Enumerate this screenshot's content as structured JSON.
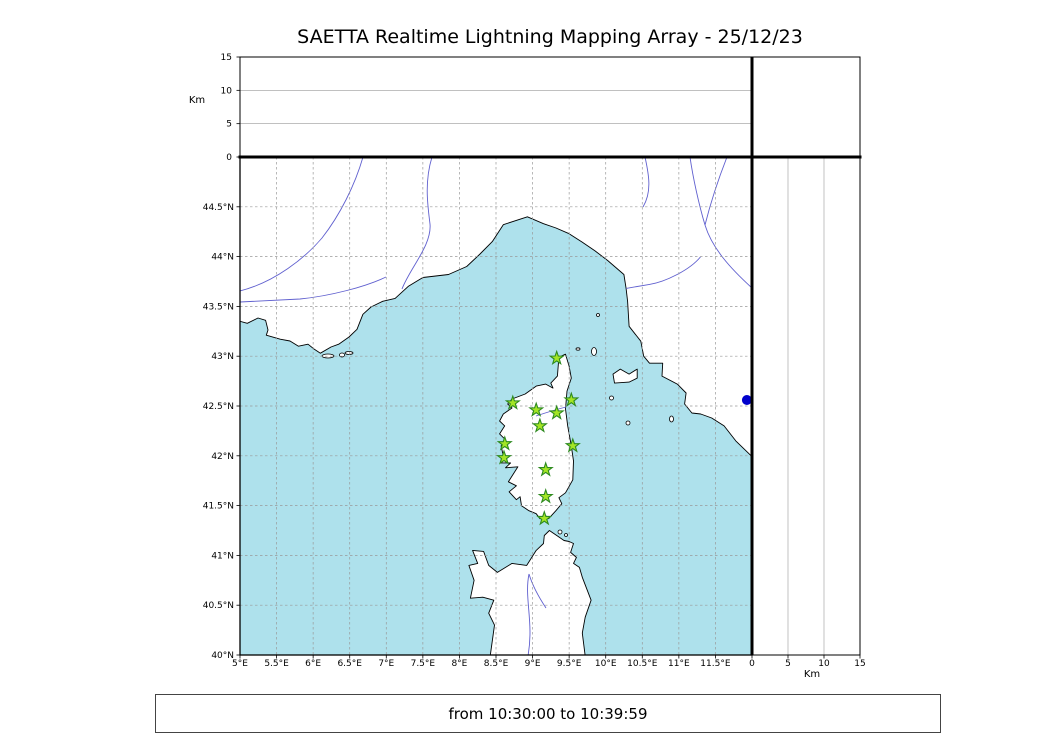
{
  "title": "SAETTA Realtime Lightning Mapping Array - 25/12/23",
  "footer": {
    "time_range": "from 10:30:00 to 10:39:59"
  },
  "colors": {
    "sea": "#aee1ec",
    "land": "#ffffff",
    "coastline": "#000000",
    "river": "#6060cf",
    "grid": "#999999",
    "station_fill": "#a4e525",
    "station_edge": "#2d8a1f",
    "offshore_marker": "#0000cc"
  },
  "chart_data": {
    "type": "scatter",
    "title": "SAETTA Realtime Lightning Mapping Array - 25/12/23",
    "map": {
      "lon_range": [
        5,
        12
      ],
      "lat_range": [
        40,
        45
      ],
      "grid_style": "dashed",
      "lon_ticks": [
        {
          "value": 5,
          "label": "5°E"
        },
        {
          "value": 5.5,
          "label": "5.5°E"
        },
        {
          "value": 6,
          "label": "6°E"
        },
        {
          "value": 6.5,
          "label": "6.5°E"
        },
        {
          "value": 7,
          "label": "7°E"
        },
        {
          "value": 7.5,
          "label": "7.5°E"
        },
        {
          "value": 8,
          "label": "8°E"
        },
        {
          "value": 8.5,
          "label": "8.5°E"
        },
        {
          "value": 9,
          "label": "9°E"
        },
        {
          "value": 9.5,
          "label": "9.5°E"
        },
        {
          "value": 10,
          "label": "10°E"
        },
        {
          "value": 10.5,
          "label": "10.5°E"
        },
        {
          "value": 11,
          "label": "11°E"
        },
        {
          "value": 11.5,
          "label": "11.5°E"
        }
      ],
      "lat_ticks": [
        {
          "value": 44.5,
          "label": "44.5°N"
        },
        {
          "value": 44,
          "label": "44°N"
        },
        {
          "value": 43.5,
          "label": "43.5°N"
        },
        {
          "value": 43,
          "label": "43°N"
        },
        {
          "value": 42.5,
          "label": "42.5°N"
        },
        {
          "value": 42,
          "label": "42°N"
        },
        {
          "value": 41.5,
          "label": "41.5°N"
        },
        {
          "value": 41,
          "label": "41°N"
        },
        {
          "value": 40.5,
          "label": "40.5°N"
        },
        {
          "value": 40,
          "label": "40°N"
        }
      ]
    },
    "altitude_axis": {
      "label": "Km",
      "range": [
        0,
        15
      ],
      "ticks": [
        0,
        5,
        10,
        15
      ]
    },
    "stations": [
      {
        "lon": 9.33,
        "lat": 42.98
      },
      {
        "lon": 8.73,
        "lat": 42.53
      },
      {
        "lon": 9.05,
        "lat": 42.46
      },
      {
        "lon": 9.33,
        "lat": 42.43
      },
      {
        "lon": 9.53,
        "lat": 42.56
      },
      {
        "lon": 9.1,
        "lat": 42.3
      },
      {
        "lon": 8.62,
        "lat": 42.12
      },
      {
        "lon": 9.55,
        "lat": 42.1
      },
      {
        "lon": 8.61,
        "lat": 41.98
      },
      {
        "lon": 9.18,
        "lat": 41.86
      },
      {
        "lon": 9.18,
        "lat": 41.59
      },
      {
        "lon": 9.16,
        "lat": 41.37
      }
    ],
    "offshore_marker": {
      "lon": 11.93,
      "lat": 42.56
    }
  }
}
